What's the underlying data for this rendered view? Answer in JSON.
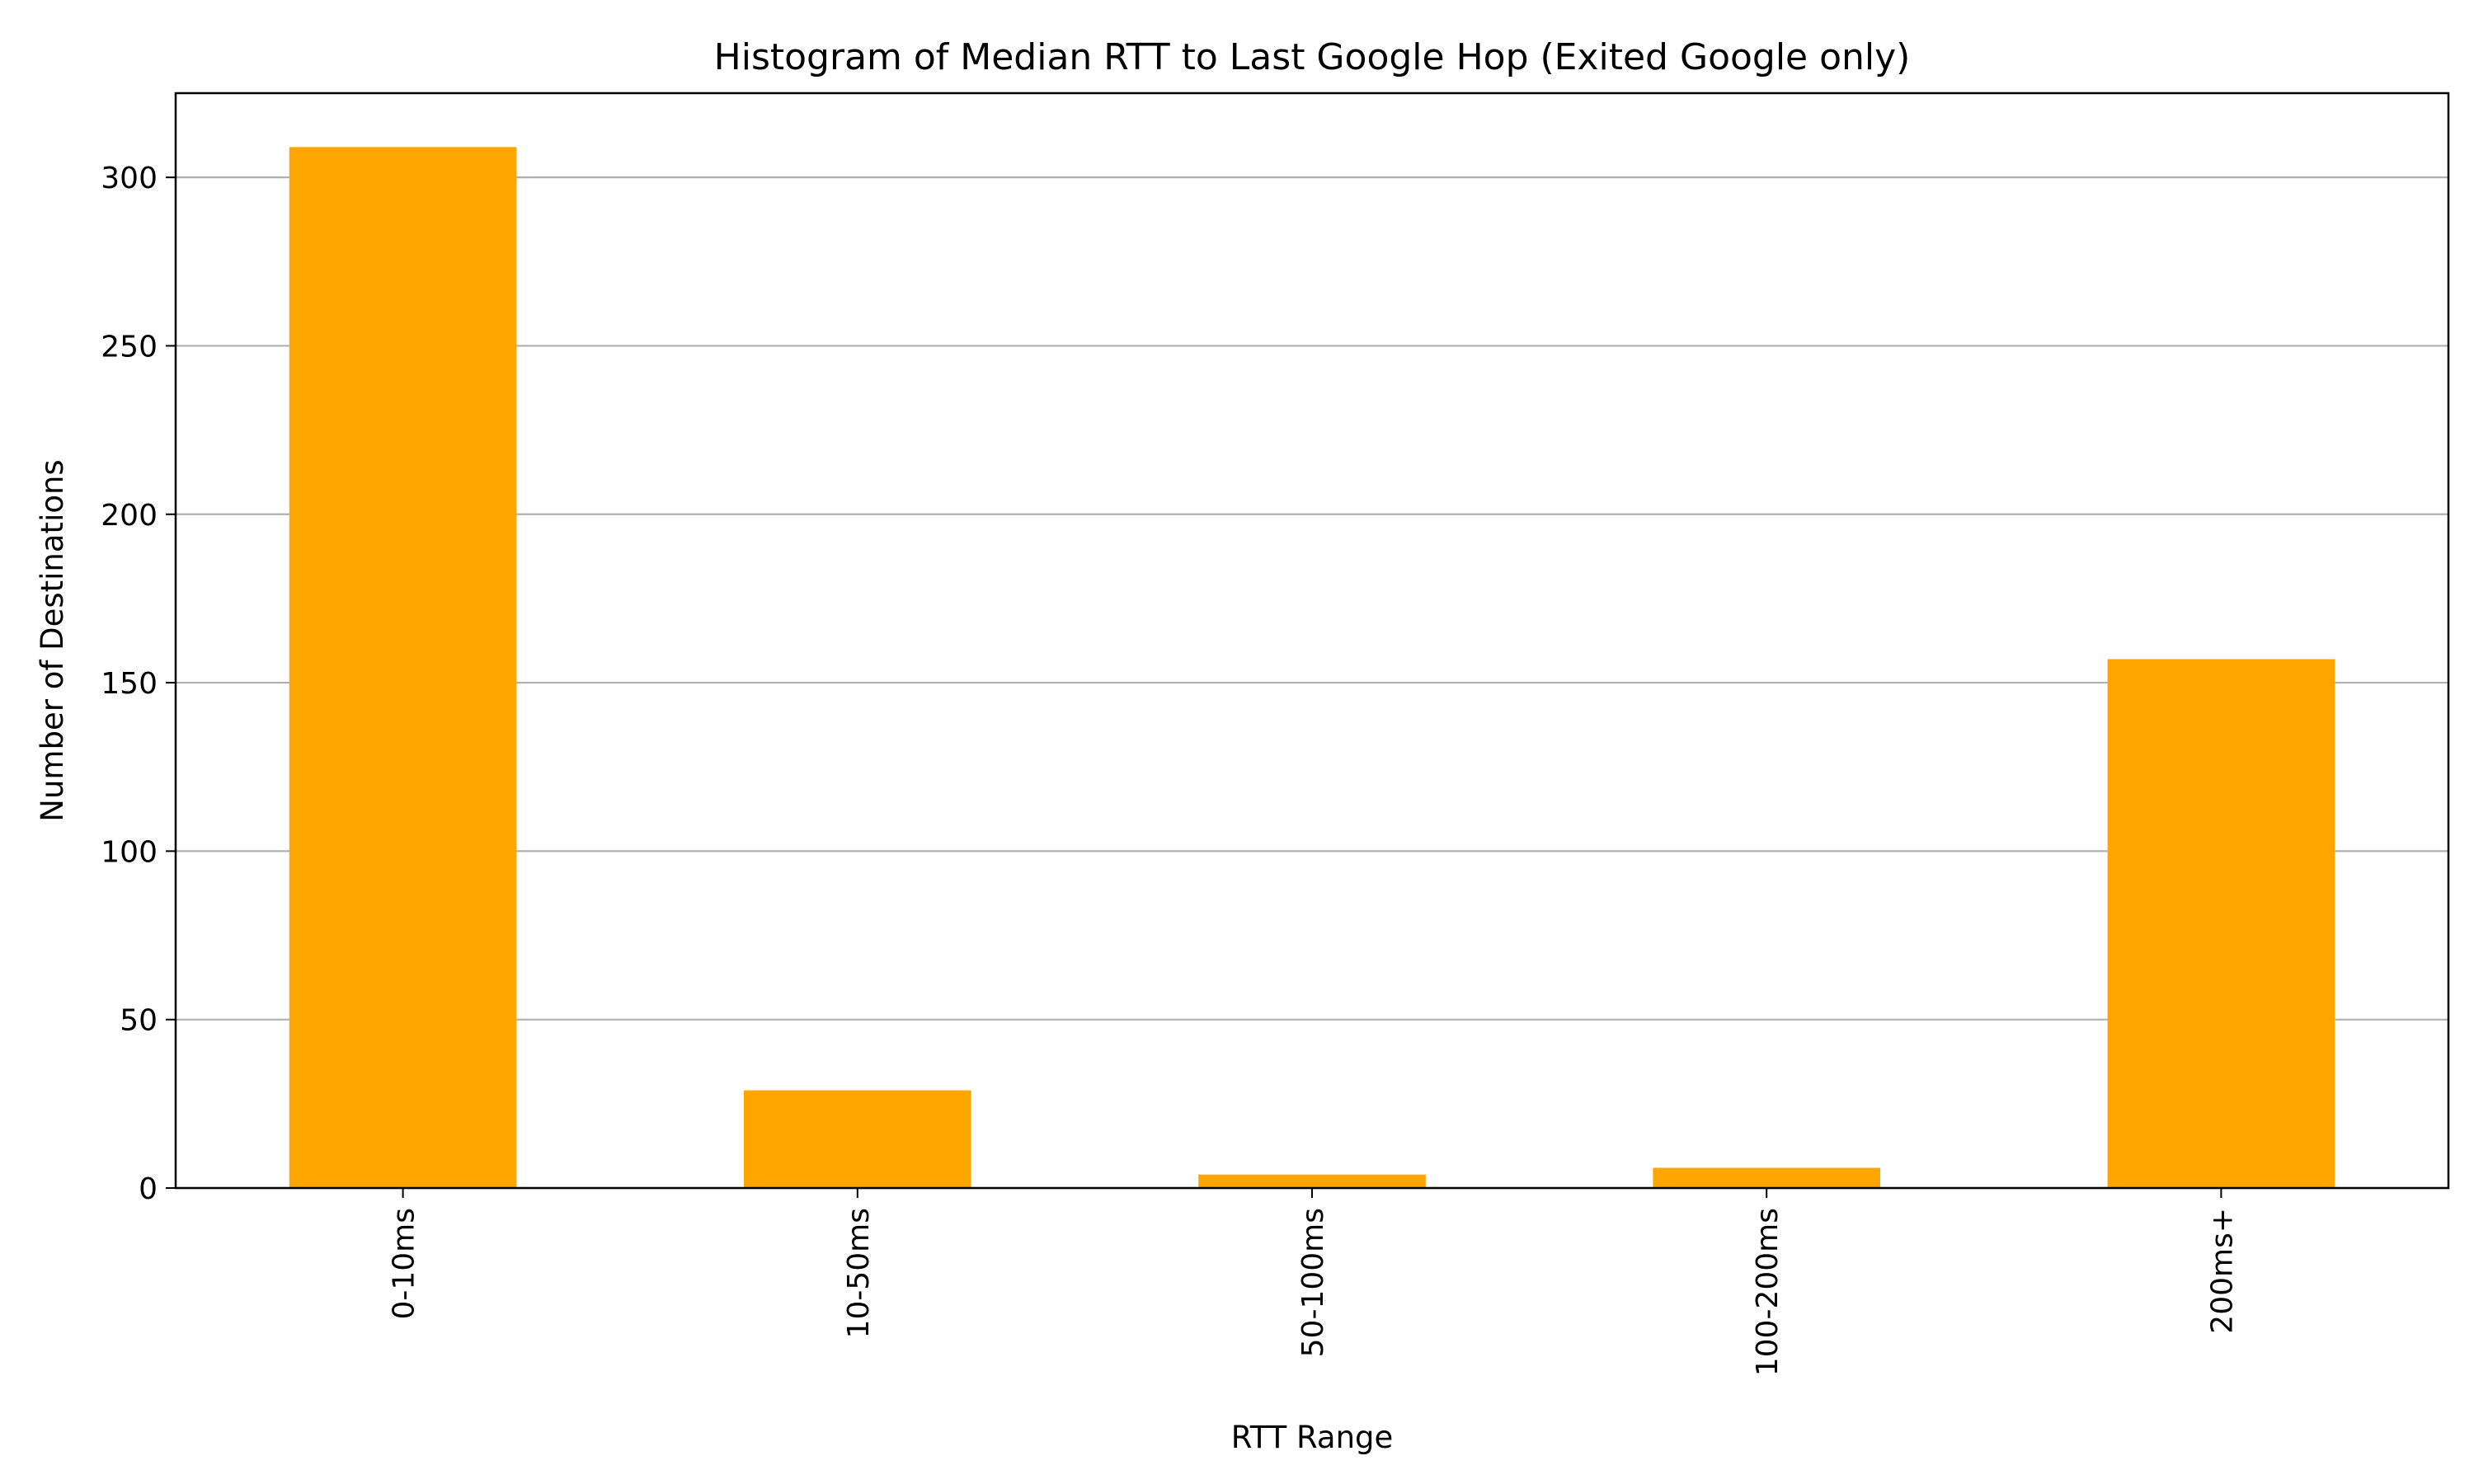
{
  "chart_data": {
    "type": "bar",
    "title": "Histogram of Median RTT to Last Google Hop (Exited Google only)",
    "xlabel": "RTT Range",
    "ylabel": "Number of Destinations",
    "categories": [
      "0-10ms",
      "10-50ms",
      "50-100ms",
      "100-200ms",
      "200ms+"
    ],
    "values": [
      309,
      29,
      4,
      6,
      157
    ],
    "ylim": [
      0,
      325
    ],
    "yticks": [
      0,
      50,
      100,
      150,
      200,
      250,
      300
    ],
    "grid": "horizontal",
    "bar_color": "#FFA500",
    "grid_color": "#b0b0b0"
  }
}
